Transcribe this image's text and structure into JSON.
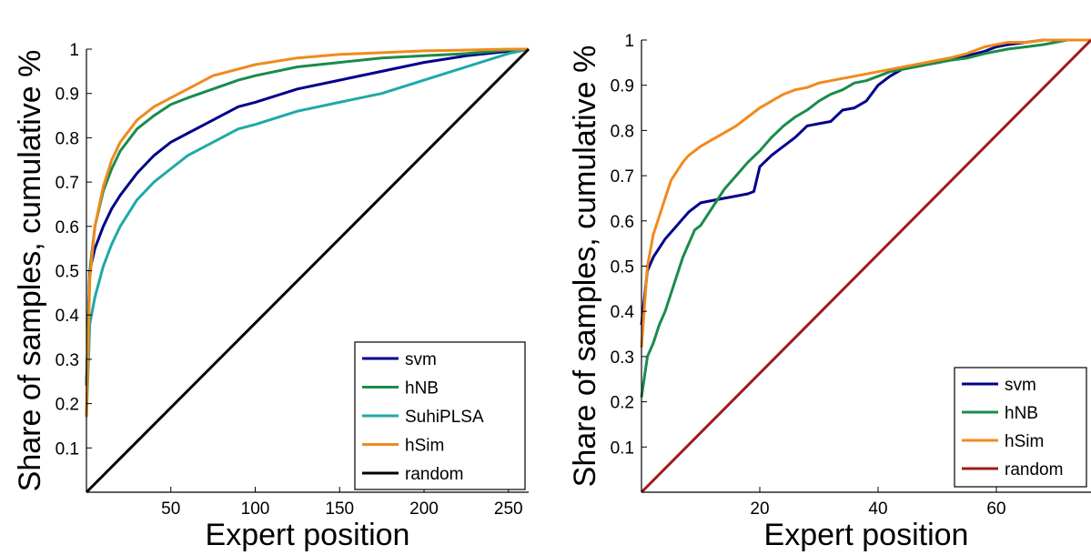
{
  "chart_data": [
    {
      "type": "line",
      "xlabel": "Expert position",
      "ylabel": "Share of samples, cumulative %",
      "xlim": [
        0,
        262
      ],
      "ylim": [
        0,
        1
      ],
      "xticks": [
        50,
        100,
        150,
        200,
        250
      ],
      "yticks": [
        0.1,
        0.2,
        0.3,
        0.4,
        0.5,
        0.6,
        0.7,
        0.8,
        0.9,
        1
      ],
      "x_tick_labels": [
        "50",
        "100",
        "150",
        "200",
        "250"
      ],
      "y_tick_labels": [
        "0.1",
        "0.2",
        "0.3",
        "0.4",
        "0.5",
        "0.6",
        "0.7",
        "0.8",
        "0.9",
        "1"
      ],
      "grid": false,
      "legend_position": "bottom-right",
      "series": [
        {
          "name": "svm",
          "color": "#00008b",
          "x": [
            0,
            2,
            5,
            10,
            15,
            20,
            30,
            40,
            50,
            60,
            75,
            90,
            100,
            125,
            150,
            175,
            200,
            225,
            250,
            262
          ],
          "y": [
            0.24,
            0.5,
            0.55,
            0.6,
            0.64,
            0.67,
            0.72,
            0.76,
            0.79,
            0.81,
            0.84,
            0.87,
            0.88,
            0.91,
            0.93,
            0.95,
            0.97,
            0.985,
            0.995,
            1.0
          ]
        },
        {
          "name": "hNB",
          "color": "#1a8c4a",
          "x": [
            0,
            2,
            5,
            10,
            15,
            20,
            30,
            40,
            50,
            60,
            75,
            90,
            100,
            125,
            150,
            175,
            200,
            225,
            250,
            262
          ],
          "y": [
            0.24,
            0.5,
            0.6,
            0.68,
            0.73,
            0.77,
            0.82,
            0.85,
            0.875,
            0.89,
            0.91,
            0.93,
            0.94,
            0.96,
            0.97,
            0.98,
            0.985,
            0.99,
            0.998,
            1.0
          ]
        },
        {
          "name": "SuhiPLSA",
          "color": "#1fa8a8",
          "x": [
            0,
            2,
            5,
            10,
            15,
            20,
            30,
            40,
            50,
            60,
            75,
            90,
            100,
            125,
            150,
            175,
            200,
            225,
            250,
            262
          ],
          "y": [
            0.17,
            0.38,
            0.44,
            0.51,
            0.56,
            0.6,
            0.66,
            0.7,
            0.73,
            0.76,
            0.79,
            0.82,
            0.83,
            0.86,
            0.88,
            0.9,
            0.93,
            0.96,
            0.99,
            1.0
          ]
        },
        {
          "name": "hSim",
          "color": "#f08a1c",
          "x": [
            0,
            2,
            5,
            10,
            15,
            20,
            30,
            40,
            50,
            60,
            75,
            90,
            100,
            125,
            150,
            175,
            200,
            225,
            250,
            262
          ],
          "y": [
            0.17,
            0.48,
            0.6,
            0.69,
            0.75,
            0.79,
            0.84,
            0.87,
            0.89,
            0.91,
            0.94,
            0.955,
            0.965,
            0.98,
            0.988,
            0.992,
            0.996,
            0.998,
            1.0,
            1.0
          ]
        },
        {
          "name": "random",
          "color": "#000000",
          "x": [
            0,
            262
          ],
          "y": [
            0,
            1
          ]
        }
      ]
    },
    {
      "type": "line",
      "xlabel": "Expert position",
      "ylabel": "Share of samples, cumulative %",
      "xlim": [
        0,
        76
      ],
      "ylim": [
        0,
        1
      ],
      "xticks": [
        20,
        40,
        60
      ],
      "yticks": [
        0.1,
        0.2,
        0.3,
        0.4,
        0.5,
        0.6,
        0.7,
        0.8,
        0.9,
        1
      ],
      "x_tick_labels": [
        "20",
        "40",
        "60"
      ],
      "y_tick_labels": [
        "0.1",
        "0.2",
        "0.3",
        "0.4",
        "0.5",
        "0.6",
        "0.7",
        "0.8",
        "0.9",
        "1"
      ],
      "grid": false,
      "legend_position": "bottom-right",
      "series": [
        {
          "name": "svm",
          "color": "#00008b",
          "x": [
            0,
            1,
            2,
            4,
            6,
            8,
            10,
            12,
            14,
            16,
            18,
            19,
            20,
            22,
            24,
            26,
            28,
            30,
            32,
            34,
            36,
            38,
            40,
            42,
            44,
            46,
            48,
            50,
            52,
            55,
            58,
            60,
            62,
            65,
            68,
            72,
            76
          ],
          "y": [
            0.37,
            0.49,
            0.52,
            0.56,
            0.59,
            0.62,
            0.64,
            0.645,
            0.65,
            0.655,
            0.66,
            0.665,
            0.72,
            0.745,
            0.765,
            0.785,
            0.81,
            0.815,
            0.82,
            0.845,
            0.85,
            0.865,
            0.9,
            0.92,
            0.935,
            0.94,
            0.945,
            0.95,
            0.955,
            0.965,
            0.975,
            0.985,
            0.99,
            0.995,
            1.0,
            1.0,
            1.0
          ]
        },
        {
          "name": "hNB",
          "color": "#1a8c4a",
          "x": [
            0,
            1,
            2,
            3,
            4,
            5,
            6,
            7,
            8,
            9,
            10,
            12,
            14,
            16,
            18,
            20,
            22,
            24,
            26,
            28,
            30,
            32,
            34,
            36,
            38,
            40,
            42,
            44,
            46,
            48,
            50,
            52,
            55,
            58,
            60,
            62,
            65,
            68,
            72,
            76
          ],
          "y": [
            0.21,
            0.3,
            0.33,
            0.37,
            0.4,
            0.44,
            0.48,
            0.52,
            0.55,
            0.58,
            0.59,
            0.63,
            0.67,
            0.7,
            0.73,
            0.755,
            0.785,
            0.81,
            0.83,
            0.845,
            0.865,
            0.88,
            0.89,
            0.905,
            0.91,
            0.92,
            0.93,
            0.935,
            0.94,
            0.945,
            0.95,
            0.955,
            0.96,
            0.97,
            0.975,
            0.98,
            0.985,
            0.99,
            1.0,
            1.0
          ]
        },
        {
          "name": "hSim",
          "color": "#f08a1c",
          "x": [
            0,
            1,
            2,
            3,
            4,
            5,
            6,
            7,
            8,
            9,
            10,
            12,
            14,
            16,
            18,
            20,
            22,
            24,
            26,
            28,
            30,
            32,
            34,
            36,
            38,
            40,
            42,
            44,
            46,
            48,
            50,
            52,
            55,
            58,
            60,
            62,
            65,
            68,
            72,
            76
          ],
          "y": [
            0.32,
            0.5,
            0.57,
            0.61,
            0.65,
            0.69,
            0.71,
            0.73,
            0.745,
            0.755,
            0.765,
            0.78,
            0.795,
            0.81,
            0.83,
            0.85,
            0.865,
            0.88,
            0.89,
            0.895,
            0.905,
            0.91,
            0.915,
            0.92,
            0.925,
            0.93,
            0.935,
            0.94,
            0.945,
            0.95,
            0.955,
            0.96,
            0.97,
            0.985,
            0.99,
            0.995,
            0.995,
            1.0,
            1.0,
            1.0
          ]
        },
        {
          "name": "random",
          "color": "#a01a1a",
          "x": [
            0,
            76
          ],
          "y": [
            0,
            1
          ]
        }
      ]
    }
  ]
}
